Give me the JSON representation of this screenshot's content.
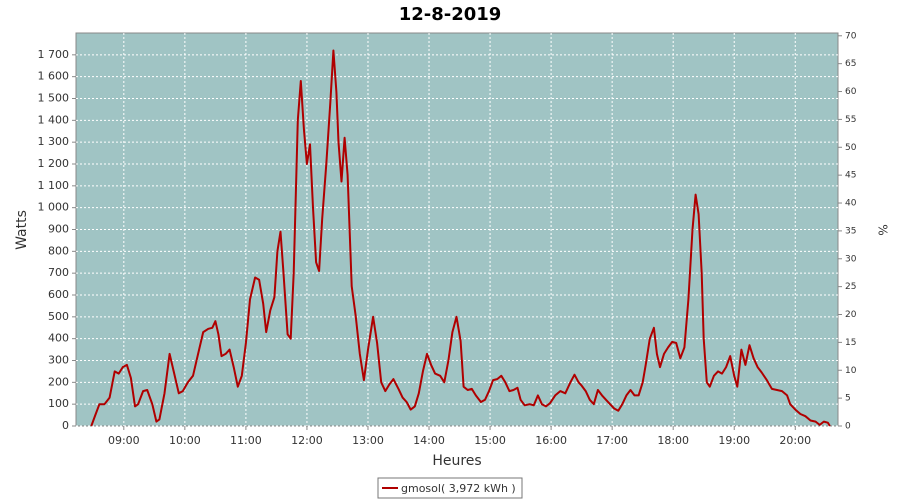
{
  "chart_data": {
    "type": "line",
    "title": "12-8-2019",
    "x_label": "Heures",
    "y_label": "Watts",
    "y2_label": "%",
    "xlim": [
      "08:13",
      "20:42"
    ],
    "xticks": [
      "09:00",
      "10:00",
      "11:00",
      "12:00",
      "13:00",
      "14:00",
      "15:00",
      "16:00",
      "17:00",
      "18:00",
      "19:00",
      "20:00"
    ],
    "ylim": [
      0,
      1800
    ],
    "yticks": [
      0,
      100,
      200,
      300,
      400,
      500,
      600,
      700,
      800,
      900,
      {
        "value": 1000,
        "label": "1 000"
      },
      {
        "value": 1100,
        "label": "1 100"
      },
      {
        "value": 1200,
        "label": "1 200"
      },
      {
        "value": 1300,
        "label": "1 300"
      },
      {
        "value": 1400,
        "label": "1 400"
      },
      {
        "value": 1500,
        "label": "1 500"
      },
      {
        "value": 1600,
        "label": "1 600"
      },
      {
        "value": 1700,
        "label": "1 700"
      }
    ],
    "y2lim": [
      0,
      70.5
    ],
    "y2ticks": [
      0,
      5,
      10,
      15,
      20,
      25,
      30,
      35,
      40,
      45,
      50,
      55,
      60,
      65,
      70
    ],
    "grid": true,
    "legend": "bottom",
    "x": [
      "08:28",
      "08:32",
      "08:36",
      "08:41",
      "08:46",
      "08:51",
      "08:55",
      "08:59",
      "09:03",
      "09:07",
      "09:11",
      "09:14",
      "09:19",
      "09:23",
      "09:28",
      "09:32",
      "09:35",
      "09:40",
      "09:45",
      "09:49",
      "09:54",
      "09:58",
      "10:03",
      "10:08",
      "10:13",
      "10:18",
      "10:23",
      "10:27",
      "10:30",
      "10:33",
      "10:36",
      "10:40",
      "10:44",
      "10:48",
      "10:52",
      "10:56",
      "11:00",
      "11:04",
      "11:09",
      "11:13",
      "11:17",
      "11:20",
      "11:24",
      "11:28",
      "11:31",
      "11:34",
      "11:37",
      "11:41",
      "11:44",
      "11:47",
      "11:51",
      "11:54",
      "11:57",
      "12:00",
      "12:03",
      "12:06",
      "12:09",
      "12:12",
      "12:15",
      "12:19",
      "12:23",
      "12:26",
      "12:29",
      "12:31",
      "12:34",
      "12:37",
      "12:40",
      "12:44",
      "12:48",
      "12:52",
      "12:56",
      "13:00",
      "13:05",
      "13:09",
      "13:13",
      "13:17",
      "13:21",
      "13:25",
      "13:30",
      "13:34",
      "13:38",
      "13:42",
      "13:46",
      "13:50",
      "13:54",
      "13:58",
      "14:02",
      "14:06",
      "14:11",
      "14:15",
      "14:19",
      "14:23",
      "14:27",
      "14:31",
      "14:34",
      "14:38",
      "14:42",
      "14:46",
      "14:51",
      "14:55",
      "14:59",
      "15:03",
      "15:07",
      "15:11",
      "15:15",
      "15:19",
      "15:23",
      "15:27",
      "15:30",
      "15:34",
      "15:39",
      "15:43",
      "15:47",
      "15:51",
      "15:55",
      "15:59",
      "16:04",
      "16:09",
      "16:14",
      "16:19",
      "16:23",
      "16:27",
      "16:30",
      "16:34",
      "16:38",
      "16:42",
      "16:46",
      "16:50",
      "16:54",
      "16:58",
      "17:02",
      "17:06",
      "17:10",
      "17:14",
      "17:18",
      "17:22",
      "17:26",
      "17:30",
      "17:33",
      "17:37",
      "17:41",
      "17:44",
      "17:47",
      "17:51",
      "17:55",
      "17:59",
      "18:03",
      "18:07",
      "18:11",
      "18:15",
      "18:19",
      "18:22",
      "18:25",
      "18:28",
      "18:30",
      "18:33",
      "18:36",
      "18:40",
      "18:44",
      "18:48",
      "18:52",
      "18:56",
      "19:00",
      "19:03",
      "19:07",
      "19:11",
      "19:15",
      "19:19",
      "19:23",
      "19:27",
      "19:32",
      "19:37",
      "19:42",
      "19:47",
      "19:52",
      "19:55",
      "20:00",
      "20:05",
      "20:10",
      "20:15",
      "20:20",
      "20:24",
      "20:28",
      "20:32",
      "20:34"
    ],
    "series": [
      {
        "name": "gmosol( 3,972 kWh )",
        "color": "#b00000",
        "values": [
          0,
          50,
          100,
          100,
          130,
          250,
          240,
          270,
          280,
          220,
          90,
          100,
          160,
          165,
          100,
          20,
          30,
          150,
          330,
          250,
          150,
          160,
          200,
          230,
          330,
          430,
          445,
          450,
          480,
          420,
          320,
          330,
          350,
          270,
          180,
          230,
          380,
          580,
          680,
          670,
          560,
          430,
          530,
          590,
          800,
          890,
          700,
          420,
          400,
          700,
          1400,
          1580,
          1360,
          1200,
          1290,
          1000,
          750,
          710,
          950,
          1200,
          1480,
          1720,
          1530,
          1300,
          1120,
          1320,
          1150,
          640,
          500,
          330,
          210,
          350,
          500,
          380,
          200,
          160,
          190,
          215,
          170,
          130,
          110,
          75,
          90,
          150,
          250,
          330,
          280,
          240,
          230,
          200,
          300,
          430,
          500,
          390,
          180,
          165,
          170,
          140,
          110,
          120,
          160,
          210,
          215,
          230,
          200,
          160,
          165,
          175,
          120,
          95,
          100,
          95,
          140,
          100,
          90,
          105,
          140,
          160,
          150,
          200,
          235,
          200,
          185,
          160,
          120,
          100,
          165,
          140,
          120,
          100,
          80,
          70,
          100,
          140,
          165,
          140,
          140,
          200,
          280,
          400,
          450,
          330,
          270,
          330,
          360,
          385,
          380,
          310,
          360,
          580,
          900,
          1060,
          970,
          700,
          400,
          200,
          180,
          230,
          250,
          240,
          270,
          320,
          230,
          180,
          350,
          280,
          370,
          310,
          270,
          245,
          210,
          170,
          165,
          160,
          140,
          100,
          75,
          55,
          45,
          25,
          20,
          5,
          20,
          15,
          0
        ]
      }
    ]
  }
}
